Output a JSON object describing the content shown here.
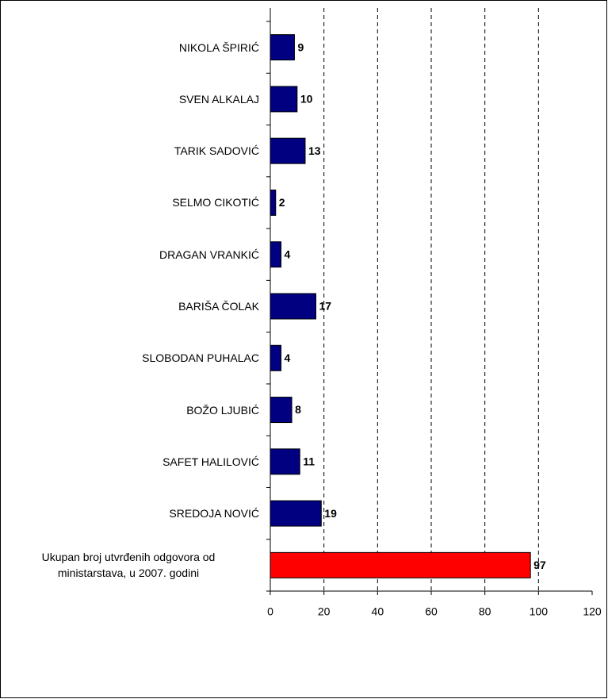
{
  "chart_data": {
    "type": "bar",
    "orientation": "horizontal",
    "categories": [
      "NIKOLA ŠPIRIĆ",
      "SVEN ALKALAJ",
      "TARIK SADOVIĆ",
      "SELMO CIKOTIĆ",
      "DRAGAN VRANKIĆ",
      "BARIŠA ČOLAK",
      "SLOBODAN PUHALAC",
      "BOŽO LJUBIĆ",
      "SAFET HALILOVIĆ",
      "SREDOJA NOVIĆ",
      "Ukupan broj utvrđenih odgovora od ministarstava, u 2007. godini"
    ],
    "values": [
      9,
      10,
      13,
      2,
      4,
      17,
      4,
      8,
      11,
      19,
      97
    ],
    "colors": [
      "#000080",
      "#000080",
      "#000080",
      "#000080",
      "#000080",
      "#000080",
      "#000080",
      "#000080",
      "#000080",
      "#000080",
      "#ff0000"
    ],
    "xlim": [
      0,
      120
    ],
    "xticks": [
      0,
      20,
      40,
      60,
      80,
      100,
      120
    ],
    "grid": true
  }
}
